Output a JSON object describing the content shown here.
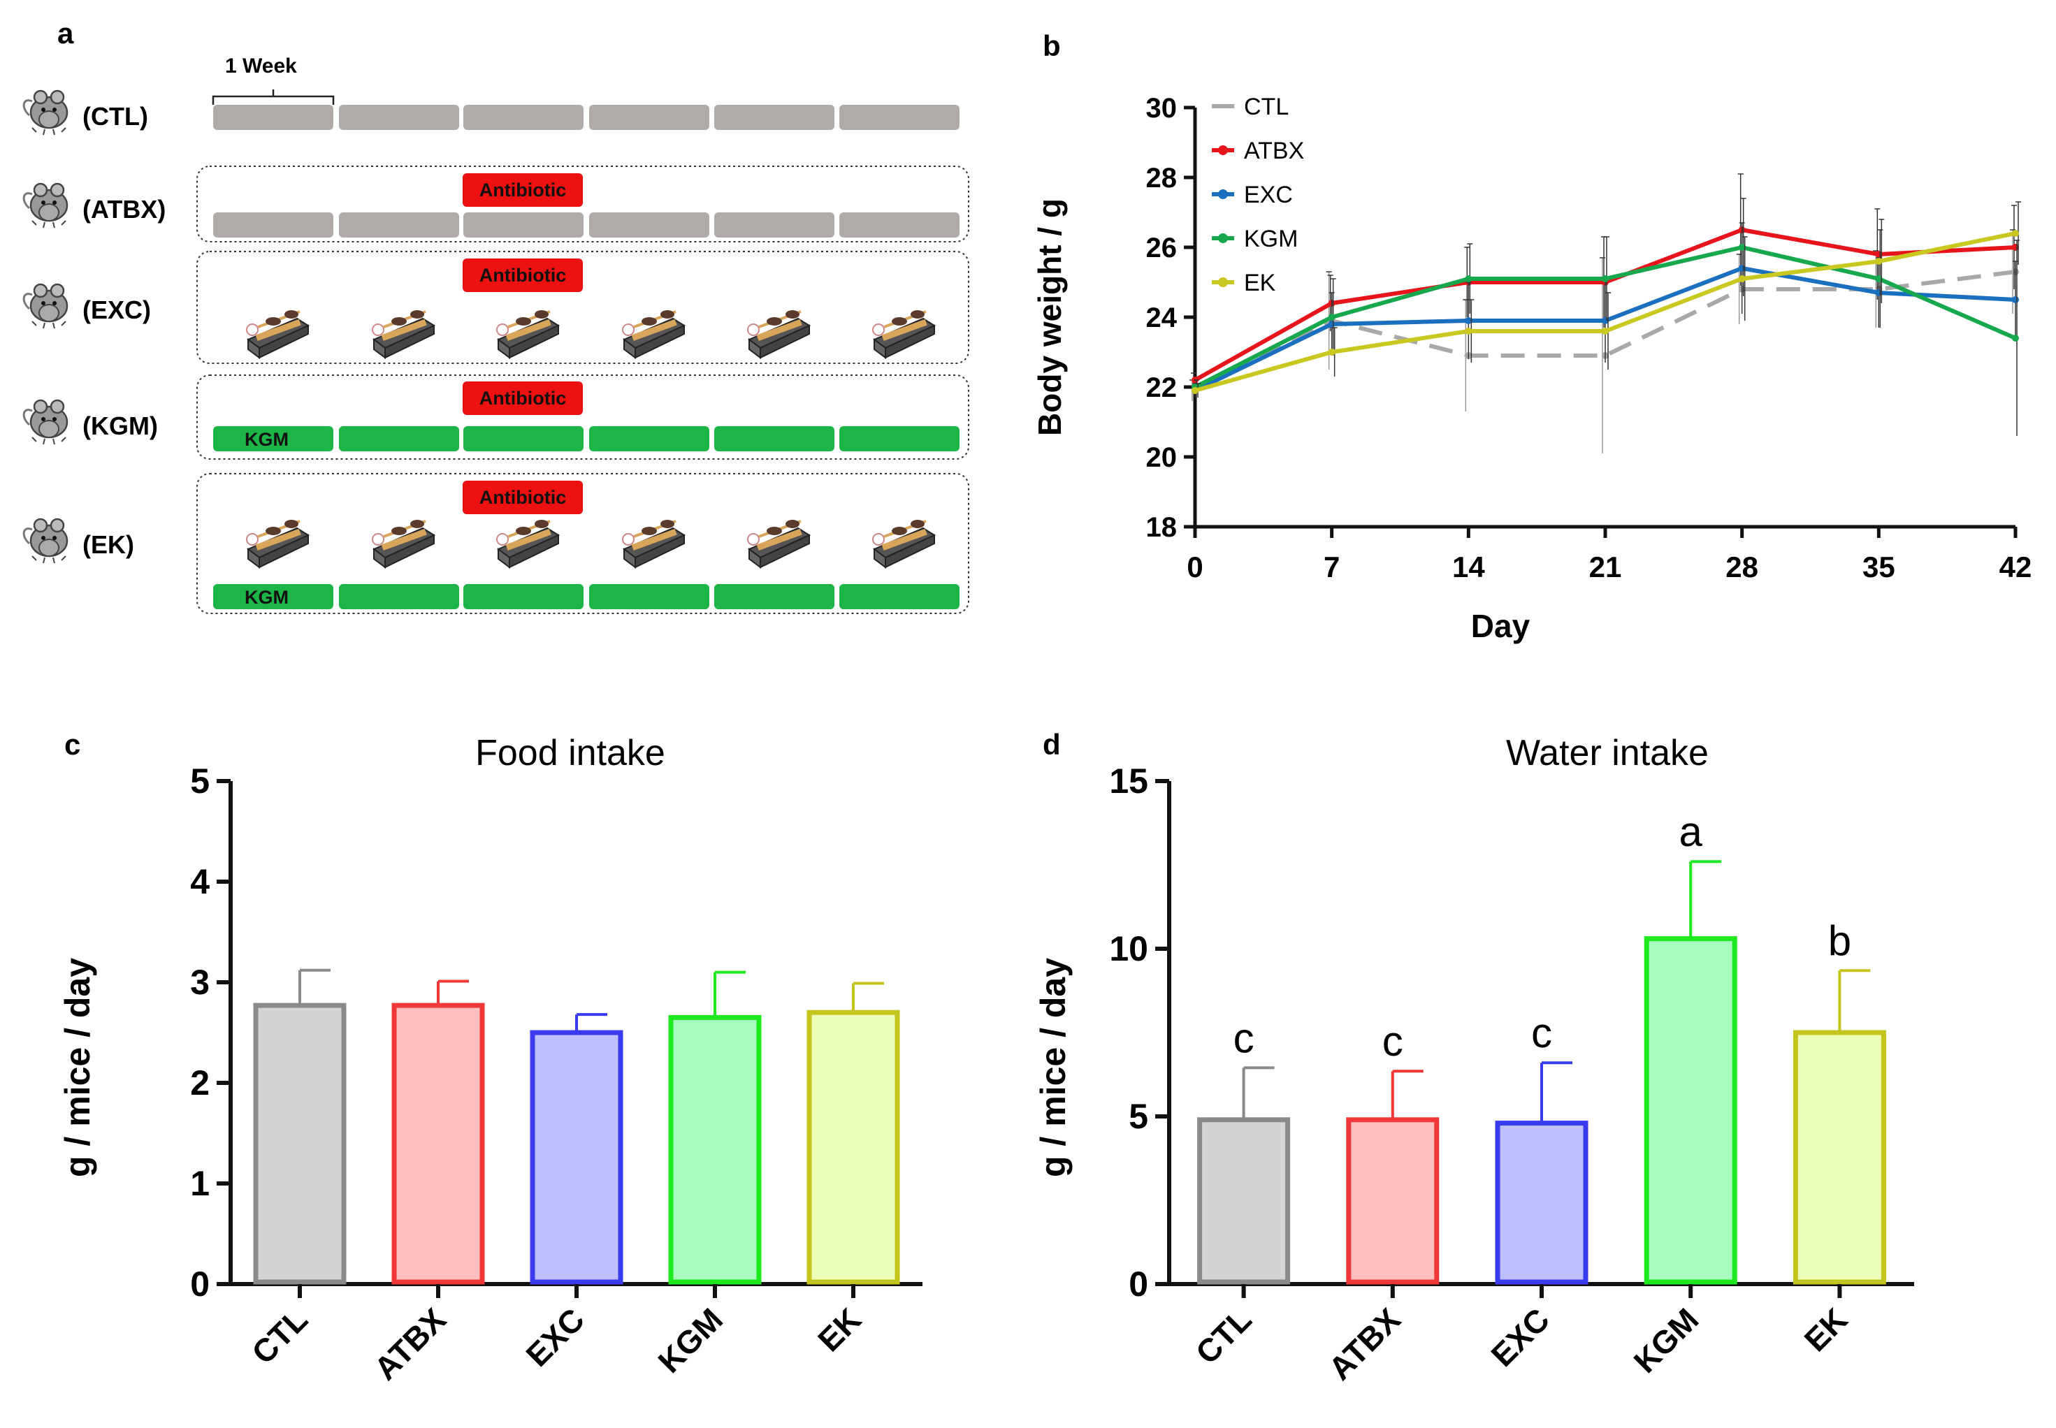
{
  "colors": {
    "CTL": "#a8a8a8",
    "ATBX": "#e8141c",
    "EXC": "#1b6fbf",
    "KGM": "#17a84e",
    "EK": "#c8c820",
    "treadmill": "#555555",
    "antibiotic": "#ee1111"
  },
  "panel_a": {
    "label": "a",
    "week_label": "1 Week",
    "groups": [
      {
        "name": "(CTL)",
        "antibiotic": false,
        "exercise": false,
        "kgm": false
      },
      {
        "name": "(ATBX)",
        "antibiotic": true,
        "exercise": false,
        "kgm": false
      },
      {
        "name": "(EXC)",
        "antibiotic": true,
        "exercise": true,
        "kgm": false
      },
      {
        "name": "(KGM)",
        "antibiotic": true,
        "exercise": false,
        "kgm": true
      },
      {
        "name": "(EK)",
        "antibiotic": true,
        "exercise": true,
        "kgm": true
      }
    ],
    "antibiotic_label": "Antibiotic",
    "kgm_label": "KGM",
    "weeks": 6
  },
  "chart_data": [
    {
      "panel": "b",
      "type": "line",
      "xlabel": "Day",
      "ylabel": "Body weight / g",
      "x": [
        0,
        7,
        14,
        21,
        28,
        35,
        42
      ],
      "xlim": [
        0,
        42
      ],
      "ylim": [
        18,
        30
      ],
      "yticks": [
        18,
        20,
        22,
        24,
        26,
        28,
        30
      ],
      "legend_position": "top-left",
      "series": [
        {
          "name": "CTL",
          "values": [
            21.9,
            23.9,
            22.9,
            22.9,
            24.8,
            24.8,
            25.3
          ],
          "err": [
            0.3,
            1.4,
            1.6,
            2.8,
            1.0,
            1.1,
            1.2
          ],
          "dashed": true
        },
        {
          "name": "ATBX",
          "values": [
            22.2,
            24.4,
            25.0,
            25.0,
            26.5,
            25.8,
            26.0
          ],
          "err": [
            0.2,
            0.8,
            1.0,
            1.3,
            1.6,
            1.3,
            1.2
          ],
          "dashed": false
        },
        {
          "name": "EXC",
          "values": [
            21.9,
            23.8,
            23.9,
            23.9,
            25.4,
            24.7,
            24.5
          ],
          "err": [
            0.2,
            0.9,
            1.1,
            1.2,
            1.3,
            1.0,
            1.1
          ],
          "dashed": false
        },
        {
          "name": "KGM",
          "values": [
            22.0,
            24.0,
            25.1,
            25.1,
            26.0,
            25.1,
            23.4
          ],
          "err": [
            0.2,
            1.1,
            1.0,
            1.2,
            1.4,
            1.4,
            2.8
          ],
          "dashed": false
        },
        {
          "name": "EK",
          "values": [
            21.9,
            23.0,
            23.6,
            23.6,
            25.1,
            25.6,
            26.4
          ],
          "err": [
            0.2,
            0.7,
            0.9,
            1.1,
            1.2,
            1.2,
            0.9
          ],
          "dashed": false
        }
      ]
    },
    {
      "panel": "c",
      "type": "bar",
      "title": "Food intake",
      "ylabel": "g / mice / day",
      "categories": [
        "CTL",
        "ATBX",
        "EXC",
        "KGM",
        "EK"
      ],
      "values": [
        2.77,
        2.77,
        2.5,
        2.65,
        2.7
      ],
      "err": [
        0.35,
        0.24,
        0.18,
        0.45,
        0.29
      ],
      "ylim": [
        0,
        5
      ],
      "yticks": [
        0,
        1,
        2,
        3,
        4,
        5
      ],
      "letters": []
    },
    {
      "panel": "d",
      "type": "bar",
      "title": "Water intake",
      "ylabel": "g / mice / day",
      "categories": [
        "CTL",
        "ATBX",
        "EXC",
        "KGM",
        "EK"
      ],
      "values": [
        4.9,
        4.9,
        4.8,
        10.3,
        7.5
      ],
      "err": [
        1.55,
        1.45,
        1.8,
        2.3,
        1.85
      ],
      "ylim": [
        0,
        15
      ],
      "yticks": [
        0,
        5,
        10,
        15
      ],
      "letters": [
        "c",
        "c",
        "c",
        "a",
        "b"
      ]
    }
  ]
}
